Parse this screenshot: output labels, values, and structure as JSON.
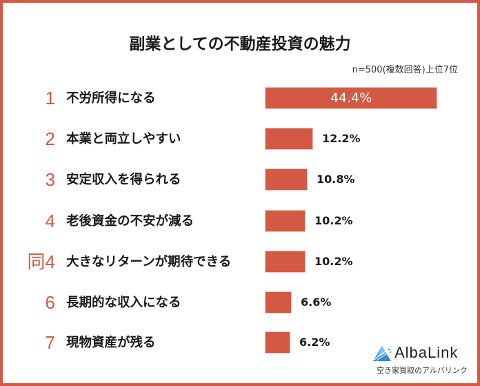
{
  "title": "副業としての不動産投資の魅力",
  "subtitle": "n=500(複数回答)上位7位",
  "colors": {
    "accent": "#d35944",
    "text": "#1a1a1a",
    "logo_blue": "#2a8fd6"
  },
  "logo": {
    "name": "AlbaLink",
    "tagline": "空き家買取のアルバリンク",
    "icon": "triangle-logo-icon"
  },
  "rows": [
    {
      "rank": "1",
      "label": "不労所得になる",
      "value": "44.4%"
    },
    {
      "rank": "2",
      "label": "本業と両立しやすい",
      "value": "12.2%"
    },
    {
      "rank": "3",
      "label": "安定収入を得られる",
      "value": "10.8%"
    },
    {
      "rank": "4",
      "label": "老後資金の不安が減る",
      "value": "10.2%"
    },
    {
      "rank": "同4",
      "label": "大きなリターンが期待できる",
      "value": "10.2%"
    },
    {
      "rank": "6",
      "label": "長期的な収入になる",
      "value": "6.6%"
    },
    {
      "rank": "7",
      "label": "現物資産が残る",
      "value": "6.2%"
    }
  ],
  "chart_data": {
    "type": "bar",
    "orientation": "horizontal",
    "title": "副業としての不動産投資の魅力",
    "subtitle": "n=500(複数回答)上位7位",
    "categories": [
      "不労所得になる",
      "本業と両立しやすい",
      "安定収入を得られる",
      "老後資金の不安が減る",
      "大きなリターンが期待できる",
      "長期的な収入になる",
      "現物資産が残る"
    ],
    "ranks": [
      "1",
      "2",
      "3",
      "4",
      "同4",
      "6",
      "7"
    ],
    "values": [
      44.4,
      12.2,
      10.8,
      10.2,
      10.2,
      6.6,
      6.2
    ],
    "unit": "%",
    "xlabel": "",
    "ylabel": "",
    "grid": false,
    "legend": null
  }
}
